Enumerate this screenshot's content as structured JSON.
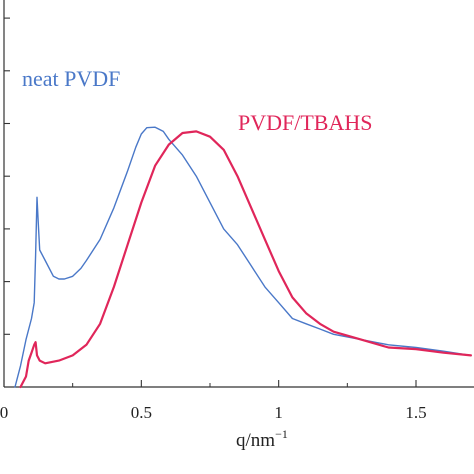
{
  "chart_data": {
    "type": "line",
    "xlabel": "q/nm",
    "xlabel_sup": "−1",
    "ylabel": "",
    "xlim": [
      0,
      1.7
    ],
    "ylim": [
      0,
      1.0
    ],
    "x_ticks": [
      {
        "value": 0,
        "label": "0"
      },
      {
        "value": 0.5,
        "label": "0.5"
      },
      {
        "value": 1,
        "label": "1"
      },
      {
        "value": 1.5,
        "label": "1.5"
      }
    ],
    "y_ticks": [
      0.1,
      0.2,
      0.3,
      0.4,
      0.5,
      0.6,
      0.7
    ],
    "grid": false,
    "legend": "inline labels",
    "series": [
      {
        "name": "neat PVDF",
        "color": "#4a78c8",
        "points": [
          [
            0.04,
            0.0
          ],
          [
            0.06,
            0.04
          ],
          [
            0.08,
            0.09
          ],
          [
            0.1,
            0.13
          ],
          [
            0.11,
            0.16
          ],
          [
            0.115,
            0.25
          ],
          [
            0.12,
            0.36
          ],
          [
            0.125,
            0.31
          ],
          [
            0.13,
            0.26
          ],
          [
            0.15,
            0.24
          ],
          [
            0.18,
            0.21
          ],
          [
            0.2,
            0.205
          ],
          [
            0.22,
            0.205
          ],
          [
            0.25,
            0.21
          ],
          [
            0.28,
            0.225
          ],
          [
            0.3,
            0.24
          ],
          [
            0.35,
            0.28
          ],
          [
            0.4,
            0.34
          ],
          [
            0.45,
            0.41
          ],
          [
            0.48,
            0.455
          ],
          [
            0.5,
            0.48
          ],
          [
            0.52,
            0.492
          ],
          [
            0.55,
            0.493
          ],
          [
            0.58,
            0.485
          ],
          [
            0.6,
            0.47
          ],
          [
            0.65,
            0.44
          ],
          [
            0.7,
            0.4
          ],
          [
            0.75,
            0.35
          ],
          [
            0.8,
            0.3
          ],
          [
            0.85,
            0.27
          ],
          [
            0.9,
            0.23
          ],
          [
            0.95,
            0.19
          ],
          [
            1.0,
            0.16
          ],
          [
            1.05,
            0.13
          ],
          [
            1.1,
            0.12
          ],
          [
            1.15,
            0.11
          ],
          [
            1.2,
            0.1
          ],
          [
            1.3,
            0.09
          ],
          [
            1.4,
            0.08
          ],
          [
            1.5,
            0.075
          ],
          [
            1.6,
            0.068
          ],
          [
            1.7,
            0.06
          ]
        ]
      },
      {
        "name": "PVDF/TBAHS",
        "color": "#e0265a",
        "points": [
          [
            0.06,
            0.0
          ],
          [
            0.08,
            0.02
          ],
          [
            0.09,
            0.05
          ],
          [
            0.1,
            0.065
          ],
          [
            0.11,
            0.08
          ],
          [
            0.115,
            0.085
          ],
          [
            0.12,
            0.06
          ],
          [
            0.13,
            0.05
          ],
          [
            0.15,
            0.045
          ],
          [
            0.2,
            0.05
          ],
          [
            0.25,
            0.06
          ],
          [
            0.3,
            0.08
          ],
          [
            0.35,
            0.12
          ],
          [
            0.4,
            0.19
          ],
          [
            0.45,
            0.27
          ],
          [
            0.5,
            0.35
          ],
          [
            0.55,
            0.42
          ],
          [
            0.6,
            0.46
          ],
          [
            0.65,
            0.482
          ],
          [
            0.7,
            0.485
          ],
          [
            0.75,
            0.475
          ],
          [
            0.8,
            0.45
          ],
          [
            0.85,
            0.4
          ],
          [
            0.9,
            0.34
          ],
          [
            0.95,
            0.28
          ],
          [
            1.0,
            0.22
          ],
          [
            1.05,
            0.17
          ],
          [
            1.1,
            0.14
          ],
          [
            1.15,
            0.12
          ],
          [
            1.2,
            0.105
          ],
          [
            1.3,
            0.09
          ],
          [
            1.4,
            0.075
          ],
          [
            1.5,
            0.072
          ],
          [
            1.6,
            0.065
          ],
          [
            1.7,
            0.06
          ]
        ]
      }
    ]
  }
}
